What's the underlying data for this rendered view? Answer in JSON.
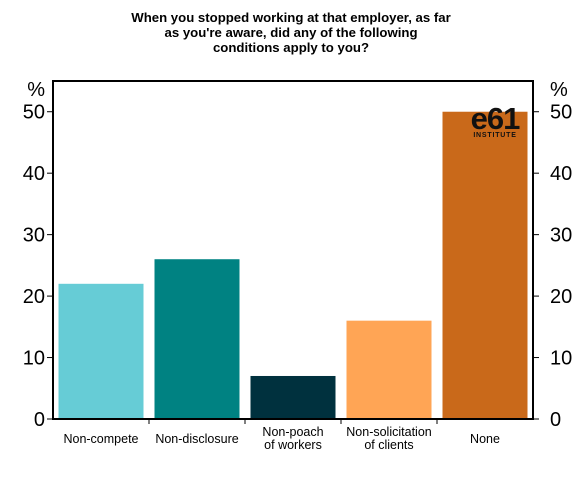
{
  "chart_data": {
    "type": "bar",
    "title_lines": [
      "When you stopped working at that employer, as far",
      "as you're aware, did any of the following",
      "conditions apply to you?"
    ],
    "categories": [
      [
        "Non-compete"
      ],
      [
        "Non-disclosure"
      ],
      [
        "Non-poach",
        "of workers"
      ],
      [
        "Non-solicitation",
        "of clients"
      ],
      [
        "None"
      ]
    ],
    "values": [
      22,
      26,
      7,
      16,
      50
    ],
    "colors": [
      "#66ccd6",
      "#008282",
      "#00313e",
      "#ffa555",
      "#c9691a"
    ],
    "y_unit_left": "%",
    "y_unit_right": "%",
    "ylim": [
      0,
      55
    ],
    "yticks": [
      0,
      10,
      20,
      30,
      40,
      50
    ],
    "grid": false,
    "logo": {
      "word": "e61",
      "sub": "INSTITUTE"
    }
  }
}
